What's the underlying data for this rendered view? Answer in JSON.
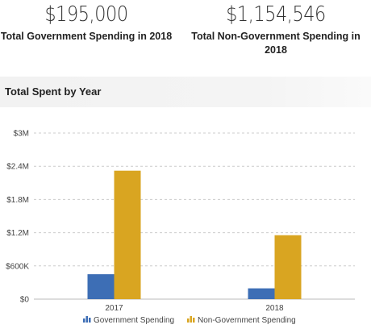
{
  "kpis": {
    "government": {
      "value": "$195,000",
      "label": "Total Government Spending in 2018"
    },
    "non_government": {
      "value": "$1,154,546",
      "label": "Total Non-Government Spending in 2018"
    }
  },
  "section": {
    "title": "Total Spent by Year"
  },
  "colors": {
    "government": "#3d6eb5",
    "non_government": "#d9a521",
    "grid": "#cccccc"
  },
  "legend": [
    {
      "name": "Government Spending",
      "icon": "bar-chart-icon"
    },
    {
      "name": "Non-Government Spending",
      "icon": "bar-chart-icon"
    }
  ],
  "chart_data": {
    "type": "bar",
    "title": "Total Spent by Year",
    "categories": [
      "2017",
      "2018"
    ],
    "series": [
      {
        "name": "Government Spending",
        "values": [
          450000,
          195000
        ]
      },
      {
        "name": "Non-Government Spending",
        "values": [
          2320000,
          1154546
        ]
      }
    ],
    "ylim": [
      0,
      3000000
    ],
    "yticks": [
      0,
      600000,
      1200000,
      1800000,
      2400000,
      3000000
    ],
    "ytick_labels": [
      "$0",
      "$600K",
      "$1.2M",
      "$1.8M",
      "$2.4M",
      "$3M"
    ],
    "grid": true,
    "legend_position": "bottom"
  }
}
